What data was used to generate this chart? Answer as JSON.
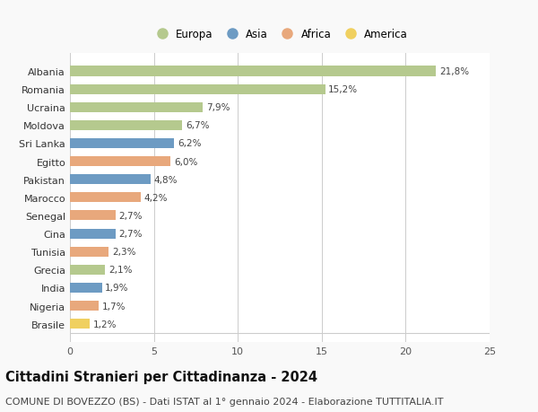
{
  "countries": [
    "Albania",
    "Romania",
    "Ucraina",
    "Moldova",
    "Sri Lanka",
    "Egitto",
    "Pakistan",
    "Marocco",
    "Senegal",
    "Cina",
    "Tunisia",
    "Grecia",
    "India",
    "Nigeria",
    "Brasile"
  ],
  "values": [
    21.8,
    15.2,
    7.9,
    6.7,
    6.2,
    6.0,
    4.8,
    4.2,
    2.7,
    2.7,
    2.3,
    2.1,
    1.9,
    1.7,
    1.2
  ],
  "labels": [
    "21,8%",
    "15,2%",
    "7,9%",
    "6,7%",
    "6,2%",
    "6,0%",
    "4,8%",
    "4,2%",
    "2,7%",
    "2,7%",
    "2,3%",
    "2,1%",
    "1,9%",
    "1,7%",
    "1,2%"
  ],
  "continents": [
    "Europa",
    "Europa",
    "Europa",
    "Europa",
    "Asia",
    "Africa",
    "Asia",
    "Africa",
    "Africa",
    "Asia",
    "Africa",
    "Europa",
    "Asia",
    "Africa",
    "America"
  ],
  "colors": {
    "Europa": "#b5c98e",
    "Asia": "#6d9bc3",
    "Africa": "#e8a87c",
    "America": "#f0d060"
  },
  "legend_order": [
    "Europa",
    "Asia",
    "Africa",
    "America"
  ],
  "title": "Cittadini Stranieri per Cittadinanza - 2024",
  "subtitle": "COMUNE DI BOVEZZO (BS) - Dati ISTAT al 1° gennaio 2024 - Elaborazione TUTTITALIA.IT",
  "xlim": [
    0,
    25
  ],
  "xticks": [
    0,
    5,
    10,
    15,
    20,
    25
  ],
  "background_color": "#f9f9f9",
  "bar_background": "#ffffff",
  "grid_color": "#cccccc",
  "title_fontsize": 10.5,
  "subtitle_fontsize": 8,
  "label_fontsize": 7.5,
  "tick_fontsize": 8,
  "legend_fontsize": 8.5
}
